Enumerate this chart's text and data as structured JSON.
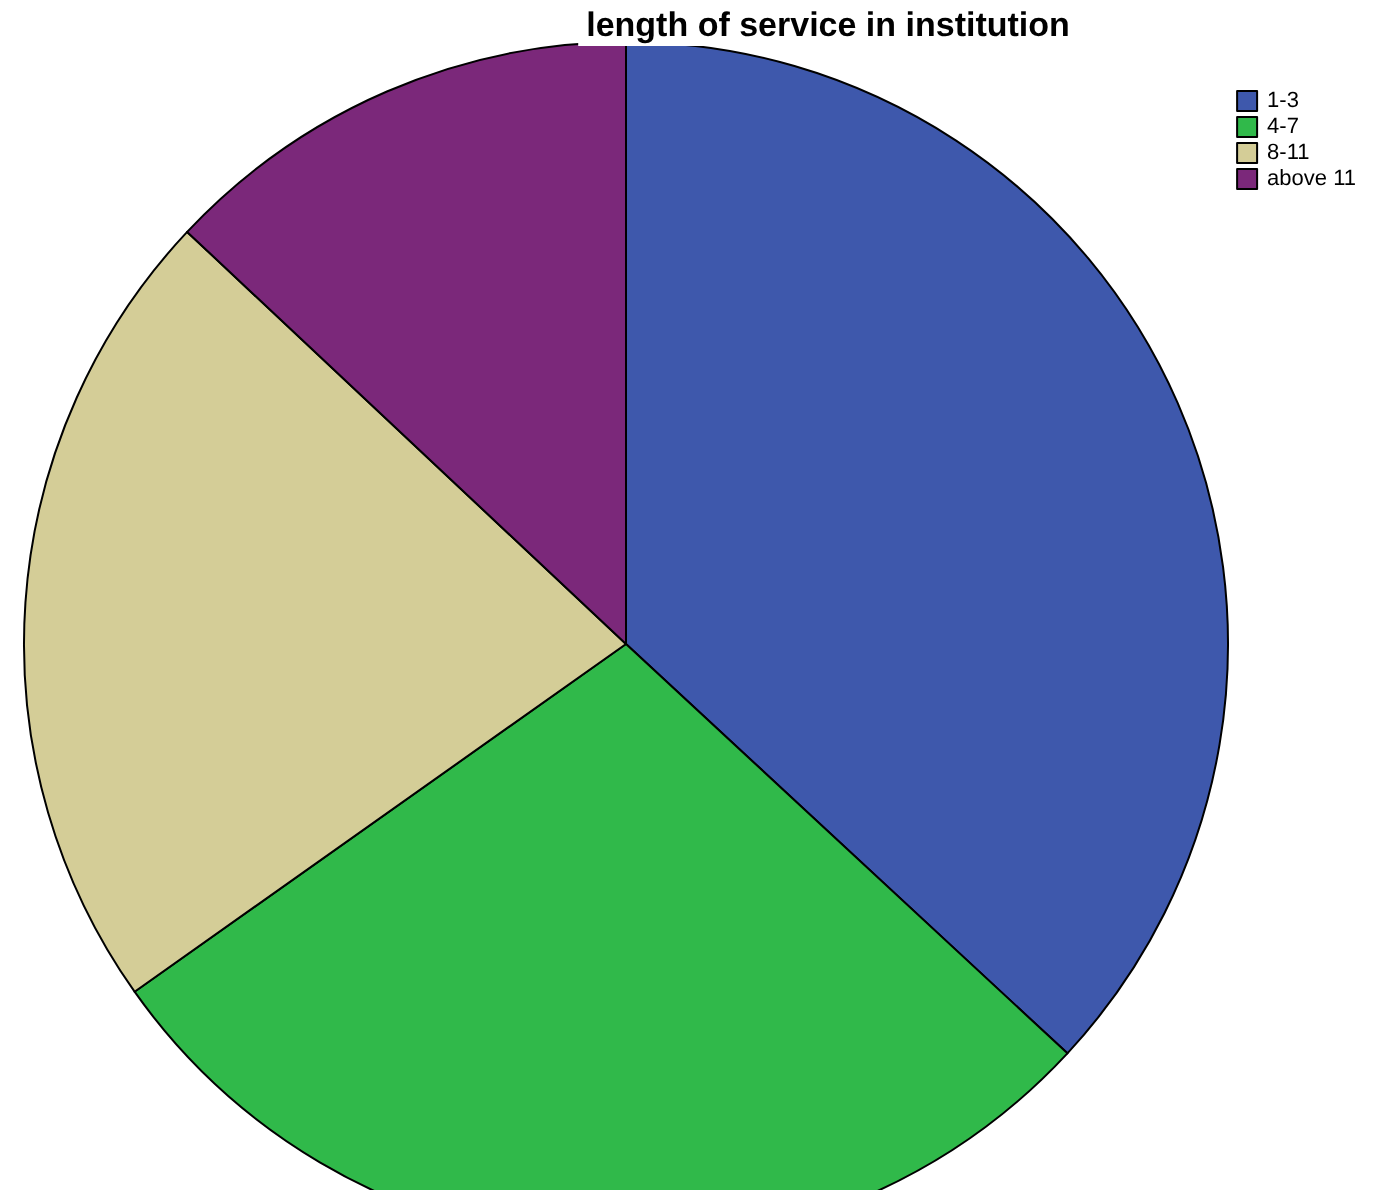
{
  "chart_data": {
    "type": "pie",
    "title": "length of service in institution",
    "categories": [
      "1-3",
      "4-7",
      "8-11",
      "above 11"
    ],
    "values": [
      36.9,
      28.3,
      21.8,
      13.0
    ],
    "colors": [
      "#3e58ac",
      "#30b94a",
      "#d4cd97",
      "#7b287a"
    ],
    "legend": "top right"
  }
}
